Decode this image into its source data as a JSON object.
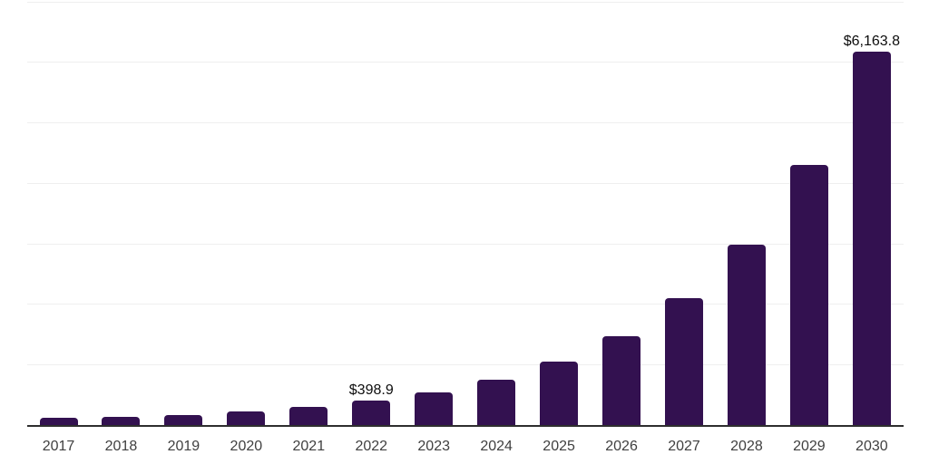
{
  "chart_data": {
    "type": "bar",
    "title": "",
    "xlabel": "",
    "ylabel": "",
    "categories": [
      "2017",
      "2018",
      "2019",
      "2020",
      "2021",
      "2022",
      "2023",
      "2024",
      "2025",
      "2026",
      "2027",
      "2028",
      "2029",
      "2030"
    ],
    "values": [
      120,
      140,
      165,
      220,
      300,
      398.9,
      540,
      750,
      1050,
      1470,
      2095,
      2980,
      4290,
      6163.8
    ],
    "data_labels": [
      "",
      "",
      "",
      "",
      "",
      "$398.9",
      "",
      "",
      "",
      "",
      "",
      "",
      "",
      "$6,163.8"
    ],
    "ylim": [
      0,
      7000
    ],
    "gridline_interval": 1000,
    "grid": true,
    "legend": "none",
    "y_tick_labels_visible": false,
    "colors": {
      "bar": "#331150",
      "axis_line": "#2e2e2e",
      "gridline": "#efefef",
      "tick_label": "#404040",
      "data_label": "#0d0d0d",
      "background": "#ffffff"
    }
  }
}
